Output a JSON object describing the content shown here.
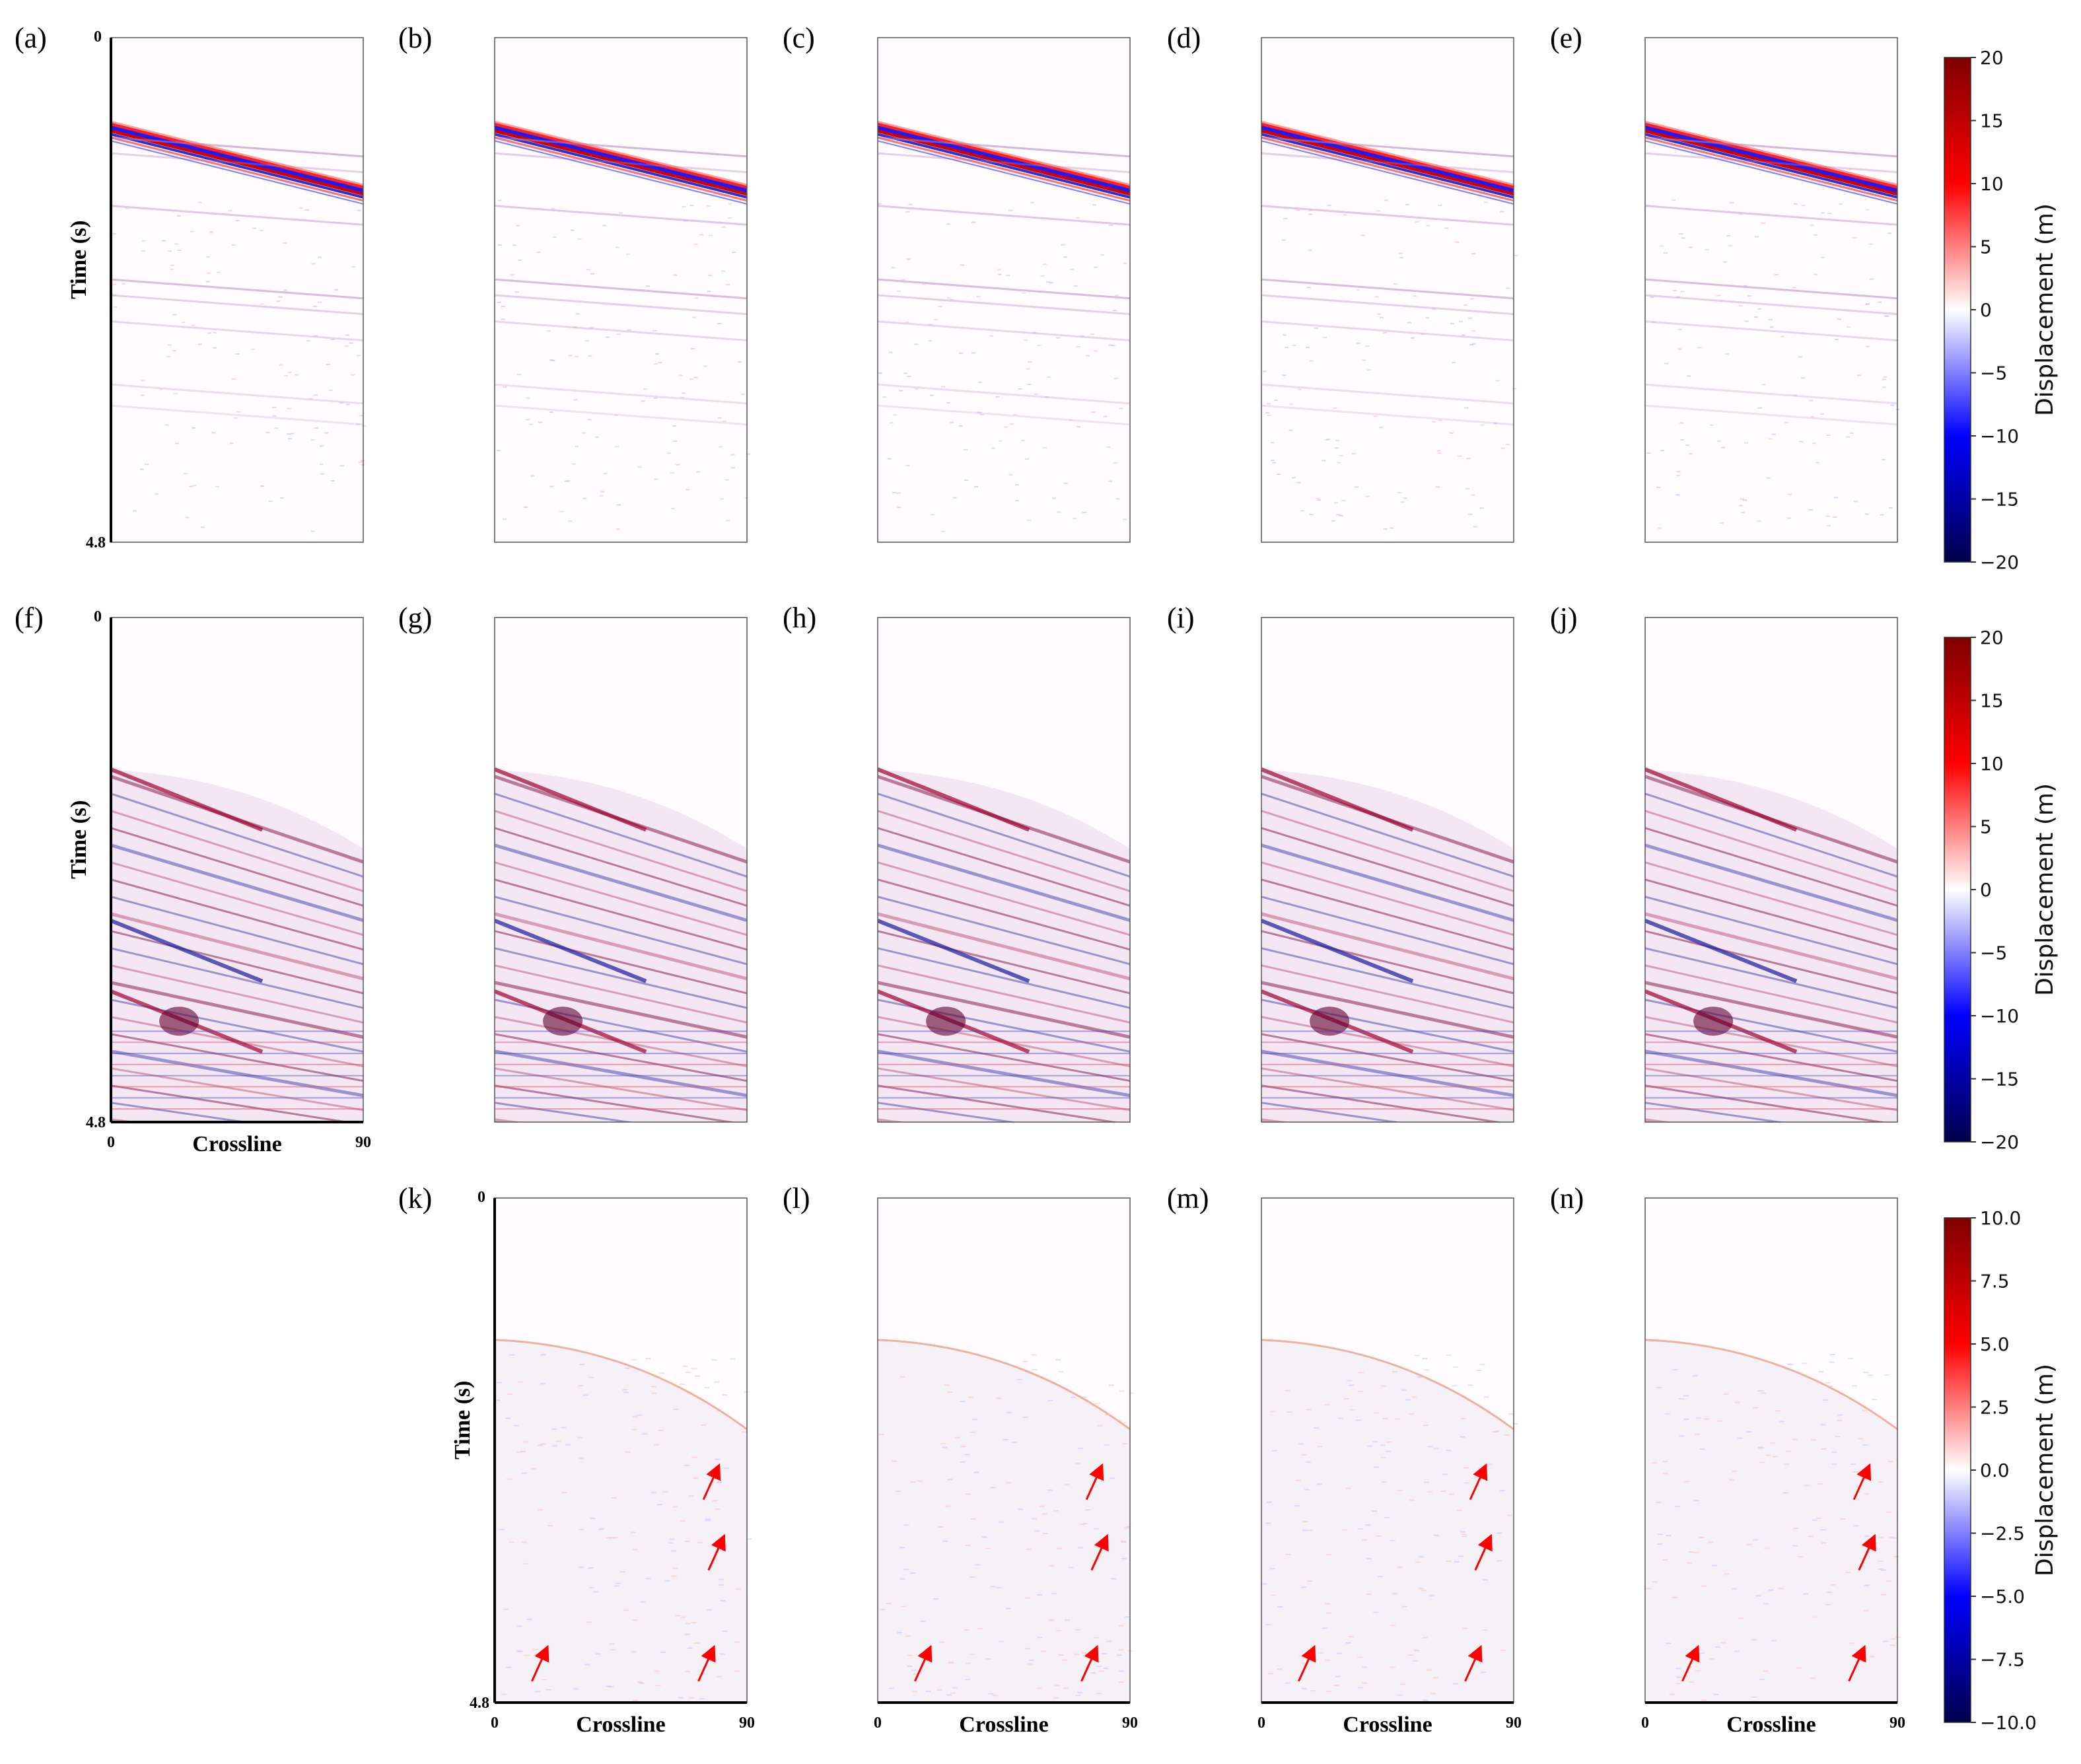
{
  "figure": {
    "rows": [
      {
        "panels": [
          {
            "label": "(a)",
            "section": "shallow",
            "col": 0
          },
          {
            "label": "(b)",
            "section": "shallow",
            "col": 1
          },
          {
            "label": "(c)",
            "section": "shallow",
            "col": 2
          },
          {
            "label": "(d)",
            "section": "shallow",
            "col": 3
          },
          {
            "label": "(e)",
            "section": "shallow",
            "col": 4
          }
        ],
        "colorbar": {
          "min": -20,
          "max": 20,
          "ticks": [
            "20",
            "15",
            "10",
            "5",
            "0",
            "−5",
            "−10",
            "−15",
            "−20"
          ],
          "label": "Displacement (m)"
        }
      },
      {
        "panels": [
          {
            "label": "(f)",
            "section": "deep",
            "col": 0
          },
          {
            "label": "(g)",
            "section": "deep",
            "col": 1
          },
          {
            "label": "(h)",
            "section": "deep",
            "col": 2
          },
          {
            "label": "(i)",
            "section": "deep",
            "col": 3
          },
          {
            "label": "(j)",
            "section": "deep",
            "col": 4
          }
        ],
        "colorbar": {
          "min": -20,
          "max": 20,
          "ticks": [
            "20",
            "15",
            "10",
            "5",
            "0",
            "−5",
            "−10",
            "−15",
            "−20"
          ],
          "label": "Displacement (m)"
        }
      },
      {
        "panels": [
          {
            "label": "(k)",
            "section": "residual",
            "col": 1
          },
          {
            "label": "(l)",
            "section": "residual",
            "col": 2
          },
          {
            "label": "(m)",
            "section": "residual",
            "col": 3
          },
          {
            "label": "(n)",
            "section": "residual",
            "col": 4
          }
        ],
        "colorbar": {
          "min": -10,
          "max": 10,
          "ticks": [
            "10.0",
            "7.5",
            "5.0",
            "2.5",
            "0.0",
            "−2.5",
            "−5.0",
            "−7.5",
            "−10.0"
          ],
          "label": "Displacement (m)"
        }
      }
    ]
  },
  "chart_data": {
    "type": "heatmap",
    "title": "",
    "xlabel": "Crossline",
    "ylabel": "Time (s)",
    "xlim": [
      0,
      90
    ],
    "ylim": [
      0,
      4.8
    ],
    "x_ticks": [
      "0",
      "90"
    ],
    "y_ticks": [
      "0",
      "4.8"
    ],
    "colormap": "seismic (blue-white-red)",
    "colormap_stops": [
      "#00004c",
      "#0000ff",
      "#ffffff",
      "#ff0000",
      "#7f0000"
    ],
    "first_arrival_shallow": {
      "time_at_x0": 0.85,
      "time_at_x90": 1.45
    },
    "first_arrival_deep": {
      "time_at_x0": 1.45,
      "time_at_x90": 2.2
    },
    "arrow_count_per_residual_panel": 4
  }
}
